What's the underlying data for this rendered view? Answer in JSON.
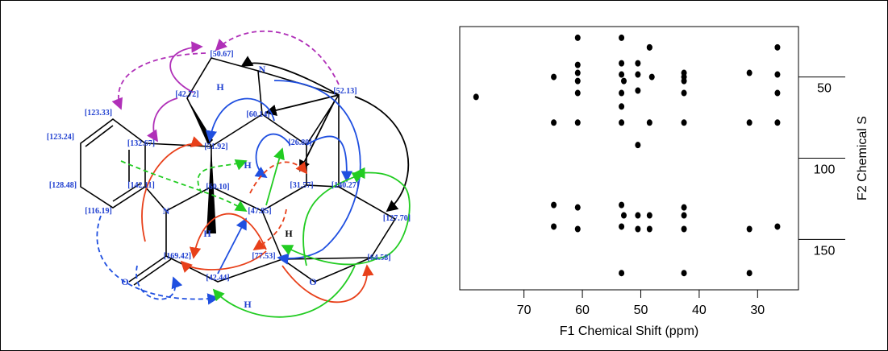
{
  "molecule": {
    "shifts": [
      "[50.67]",
      "[42.72]",
      "[52.13]",
      "[60.14]",
      "[123.33]",
      "[132.67]",
      "[51.92]",
      "[26.80]",
      "[123.24]",
      "[142.11]",
      "[60.10]",
      "[31.57]",
      "[140.27]",
      "[128.48]",
      "[47.85]",
      "[127.70]",
      "[116.19]",
      "[169.42]",
      "[77.53]",
      "[64.58]",
      "[42.44]"
    ],
    "atoms": [
      "N",
      "N",
      "O",
      "O",
      "H",
      "H",
      "H",
      "H",
      "H"
    ]
  },
  "chart_data": {
    "type": "scatter",
    "xlabel": "F1 Chemical Shift (ppm)",
    "ylabel": "F2 Chemical S",
    "color": "#000000",
    "x": [
      60.8,
      53.3,
      48.5,
      26.6,
      60.8,
      60.8,
      60.8,
      53.3,
      50.5,
      48.5,
      42.6,
      64.9,
      53.3,
      52.9,
      50.5,
      48.1,
      42.6,
      42.6,
      31.4,
      26.6,
      78.2,
      60.8,
      53.3,
      50.5,
      42.6,
      26.6,
      53.3,
      64.9,
      60.8,
      53.3,
      48.5,
      42.6,
      31.4,
      26.6,
      50.5,
      64.9,
      60.8,
      53.3,
      52.9,
      50.5,
      48.5,
      42.6,
      42.6,
      64.9,
      60.8,
      53.3,
      50.5,
      48.5,
      42.6,
      31.4,
      26.6,
      53.3,
      42.6,
      31.4
    ],
    "values": [
      25.9,
      25.9,
      31.8,
      31.8,
      42.6,
      47.5,
      52.5,
      41.6,
      41.6,
      31.8,
      47.5,
      50,
      48.5,
      52.5,
      48.5,
      50,
      50,
      52.5,
      47.5,
      48.5,
      62.3,
      59.9,
      59.9,
      58.4,
      59.9,
      59.9,
      68.2,
      78.1,
      78.1,
      78.1,
      78.1,
      78.1,
      78.1,
      78.1,
      91.9,
      128.8,
      130.3,
      128.8,
      135.2,
      135.2,
      135.2,
      130.3,
      135.2,
      142.1,
      143.6,
      142.1,
      143.6,
      143.6,
      143.6,
      143.6,
      142.1,
      170.7,
      170.7,
      170.7
    ],
    "xlim": [
      81,
      23
    ],
    "ylim": [
      181,
      19
    ],
    "xticks": [
      70,
      60,
      50,
      40,
      30
    ],
    "yticks": [
      50,
      100,
      150
    ]
  }
}
